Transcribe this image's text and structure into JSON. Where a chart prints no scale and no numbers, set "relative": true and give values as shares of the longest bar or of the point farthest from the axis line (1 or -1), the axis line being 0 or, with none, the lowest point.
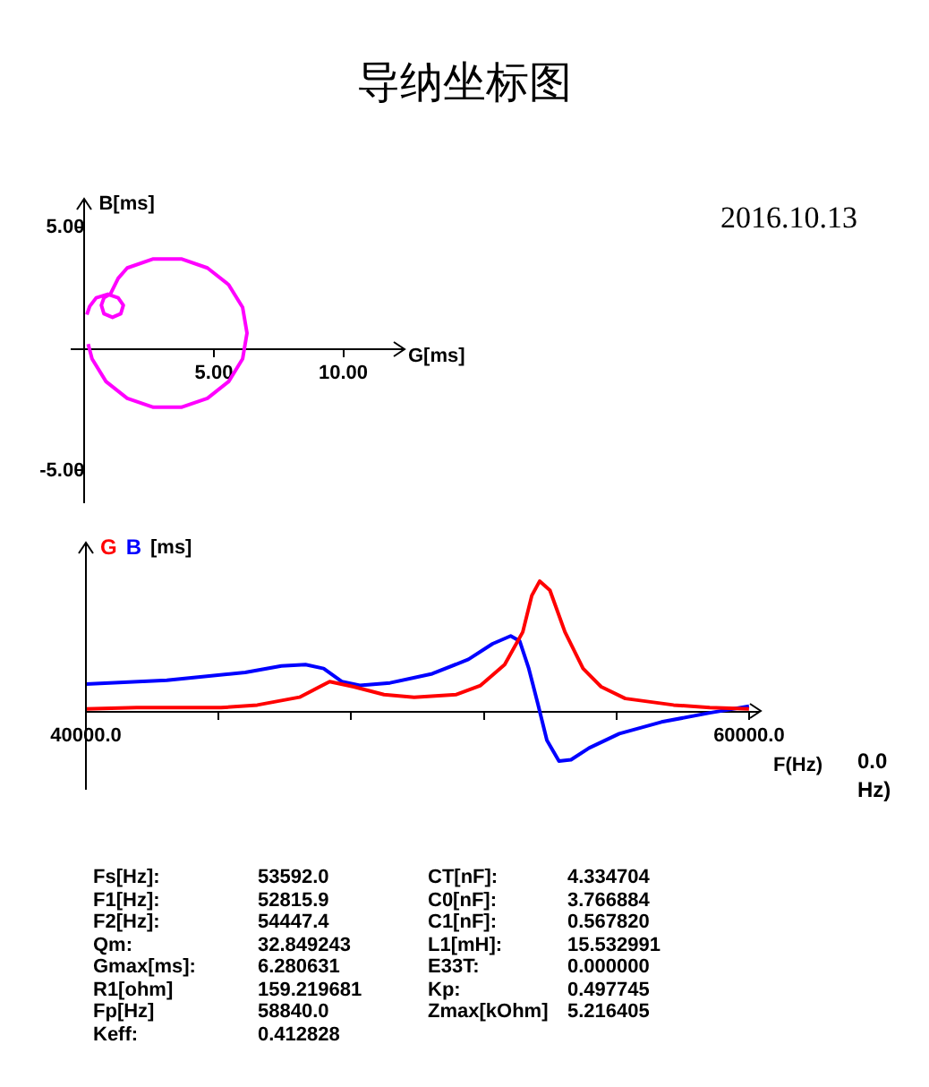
{
  "chart_data": [
    {
      "type": "line",
      "title": "导纳坐标图",
      "annotations": [
        "2016.10.13"
      ],
      "xlabel": "G[ms]",
      "ylabel": "B[ms]",
      "series": [
        {
          "color": "#ff00ff",
          "x": [
            0.09,
            0.2,
            0.45,
            0.9,
            1.3,
            1.5,
            1.4,
            1.08,
            0.75,
            0.65,
            0.75,
            1.0,
            1.3,
            1.65,
            2.66,
            3.74,
            4.75,
            5.57,
            6.11,
            6.28,
            6.11,
            5.57,
            4.75,
            3.74,
            2.66,
            1.65,
            0.83,
            0.29,
            0.14
          ],
          "values": [
            1.41,
            1.75,
            2.1,
            2.25,
            2.1,
            1.8,
            1.45,
            1.3,
            1.45,
            1.8,
            2.1,
            2.26,
            2.9,
            3.33,
            3.7,
            3.7,
            3.33,
            2.64,
            1.71,
            0.65,
            -0.41,
            -1.34,
            -2.03,
            -2.4,
            -2.4,
            -2.03,
            -1.34,
            -0.41,
            0.2
          ]
        }
      ],
      "xlim": [
        -0.5,
        12.3
      ],
      "ylim": [
        -6.3,
        6.1
      ],
      "xticks": [
        {
          "value": 5,
          "label": "5.00"
        },
        {
          "value": 10,
          "label": "10.00"
        }
      ],
      "yticks": [
        {
          "value": -5,
          "label": "-5.00"
        },
        {
          "value": 5,
          "label": "5.00"
        }
      ],
      "grid": false,
      "legend": false,
      "marker": "none"
    },
    {
      "type": "line",
      "xlabel": "F(Hz)",
      "ylabel": "[ms]",
      "relative": true,
      "annotations": [
        "0.0",
        "Hz)"
      ],
      "series": [
        {
          "name": "G",
          "color": "#ff0000",
          "x": [
            40000,
            41529,
            44076,
            45168,
            46442,
            47352,
            48080,
            48990,
            49900,
            51174,
            51902,
            52630,
            53176,
            53449,
            53685,
            53995,
            54449,
            54995,
            55541,
            56269,
            57725,
            58817,
            60000
          ],
          "values": [
            0.02,
            0.03,
            0.03,
            0.05,
            0.11,
            0.23,
            0.19,
            0.13,
            0.11,
            0.13,
            0.2,
            0.36,
            0.61,
            0.89,
            1,
            0.93,
            0.61,
            0.33,
            0.19,
            0.1,
            0.05,
            0.03,
            0.02
          ]
        },
        {
          "name": "B",
          "color": "#0000ff",
          "x": [
            40000,
            42439,
            44804,
            45896,
            46624,
            47170,
            47716,
            48262,
            49172,
            50446,
            51538,
            52266,
            52812,
            53085,
            53358,
            53631,
            53904,
            54268,
            54632,
            55178,
            56088,
            57361,
            58817,
            60000
          ],
          "values": [
            0.21,
            0.24,
            0.3,
            0.35,
            0.36,
            0.33,
            0.23,
            0.2,
            0.22,
            0.29,
            0.4,
            0.52,
            0.58,
            0.54,
            0.33,
            0.06,
            -0.22,
            -0.38,
            -0.37,
            -0.28,
            -0.17,
            -0.08,
            -0.01,
            0.04
          ]
        }
      ],
      "xlim": [
        40000,
        60300
      ],
      "xticks": [
        {
          "value": 40000,
          "label": "40000.0"
        },
        {
          "value": 44000,
          "label": null
        },
        {
          "value": 48000,
          "label": null
        },
        {
          "value": 52000,
          "label": null
        },
        {
          "value": 56000,
          "label": null
        },
        {
          "value": 60000,
          "label": "60000.0"
        }
      ],
      "grid": false,
      "legend": "top left",
      "marker": "none"
    },
    {
      "type": "other",
      "annotations": [
        "Fs[Hz]:",
        "53592.0",
        "CT[nF]:",
        "4.334704",
        "F1[Hz]:",
        "52815.9",
        "C0[nF]:",
        "3.766884",
        "F2[Hz]:",
        "54447.4",
        "C1[nF]:",
        "0.567820",
        "Qm:",
        "32.849243",
        "L1[mH]:",
        "15.532991",
        "Gmax[ms]:",
        "6.280631",
        "E33T:",
        "0.000000",
        "R1[ohm]",
        "159.219681",
        "Kp:",
        "0.497745",
        "Fp[Hz]",
        "58840.0",
        "Zmax[kOhm]",
        "5.216405",
        "Keff:",
        "0.412828"
      ]
    }
  ]
}
